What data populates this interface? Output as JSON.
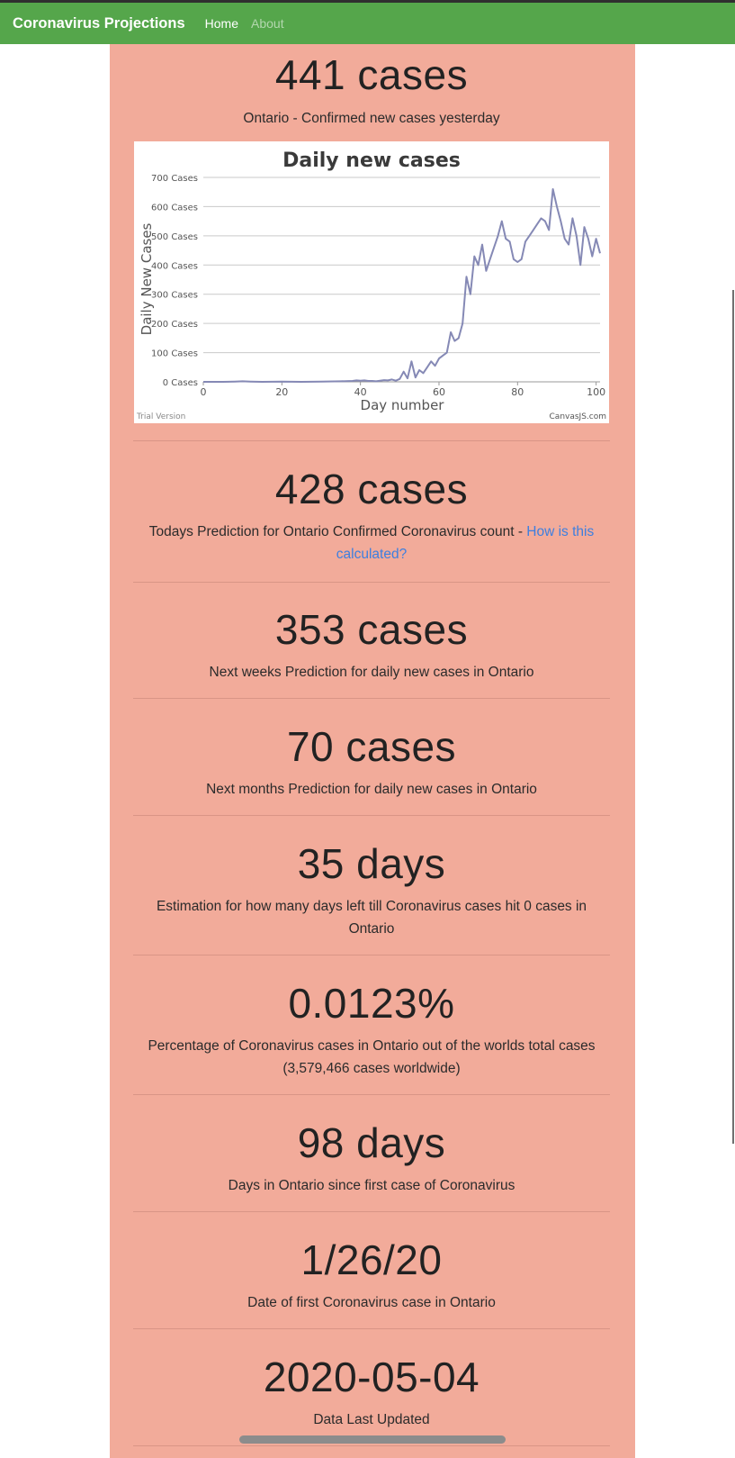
{
  "navbar": {
    "brand": "Coronavirus Projections",
    "links": [
      {
        "label": "Home",
        "active": true
      },
      {
        "label": "About",
        "active": false
      }
    ],
    "color": "#55a64b"
  },
  "panel_color": "#f2ab9a",
  "yesterday": {
    "value": "441 cases",
    "label": "Ontario - Confirmed new cases yesterday"
  },
  "chart_data": {
    "type": "line",
    "title": "Daily new cases",
    "xlabel": "Day number",
    "ylabel": "Daily New Cases",
    "xlim": [
      0,
      101
    ],
    "ylim": [
      0,
      700
    ],
    "xticks": [
      0,
      20,
      40,
      60,
      80,
      100
    ],
    "yticks": [
      "0 Cases",
      "100 Cases",
      "200 Cases",
      "300 Cases",
      "400 Cases",
      "500 Cases",
      "600 Cases",
      "700 Cases"
    ],
    "ytick_values": [
      0,
      100,
      200,
      300,
      400,
      500,
      600,
      700
    ],
    "grid": true,
    "line_color": "#8589b5",
    "watermark_left": "Trial Version",
    "watermark_right": "CanvasJS.com",
    "x": [
      0,
      5,
      8,
      10,
      12,
      15,
      20,
      25,
      30,
      35,
      38,
      39,
      40,
      41,
      42,
      43,
      44,
      45,
      46,
      47,
      48,
      49,
      50,
      51,
      52,
      53,
      54,
      55,
      56,
      57,
      58,
      59,
      60,
      61,
      62,
      63,
      64,
      65,
      66,
      67,
      68,
      69,
      70,
      71,
      72,
      73,
      74,
      75,
      76,
      77,
      78,
      79,
      80,
      81,
      82,
      83,
      84,
      85,
      86,
      87,
      88,
      89,
      90,
      91,
      92,
      93,
      94,
      95,
      96,
      97,
      98,
      99,
      100,
      101
    ],
    "y": [
      0,
      0,
      1,
      2,
      1,
      0,
      1,
      0,
      1,
      2,
      3,
      5,
      4,
      5,
      3,
      3,
      2,
      4,
      6,
      5,
      8,
      4,
      10,
      35,
      12,
      70,
      15,
      40,
      30,
      50,
      70,
      55,
      80,
      90,
      100,
      170,
      140,
      150,
      200,
      360,
      300,
      430,
      400,
      470,
      380,
      420,
      460,
      500,
      550,
      490,
      480,
      420,
      410,
      420,
      480,
      500,
      520,
      540,
      560,
      550,
      520,
      660,
      600,
      550,
      490,
      470,
      560,
      500,
      400,
      530,
      490,
      430,
      490,
      440
    ]
  },
  "today": {
    "value": "428 cases",
    "label": "Todays Prediction for Ontario Confirmed Coronavirus count - ",
    "link": "How is this calculated?"
  },
  "next_week": {
    "value": "353 cases",
    "label": "Next weeks Prediction for daily new cases in Ontario"
  },
  "next_month": {
    "value": "70 cases",
    "label": "Next months Prediction for daily new cases in Ontario"
  },
  "days_left": {
    "value": "35 days",
    "label": "Estimation for how many days left till Coronavirus cases hit 0 cases in Ontario"
  },
  "percentage": {
    "value": "0.0123%",
    "label": "Percentage of Coronavirus cases in Ontario out of the worlds total cases (3,579,466 cases worldwide)"
  },
  "days_since": {
    "value": "98 days",
    "label": "Days in Ontario since first case of Coronavirus"
  },
  "first_case": {
    "value": "1/26/20",
    "label": "Date of first Coronavirus case in Ontario"
  },
  "updated": {
    "value": "2020-05-04",
    "label": "Data Last Updated"
  }
}
